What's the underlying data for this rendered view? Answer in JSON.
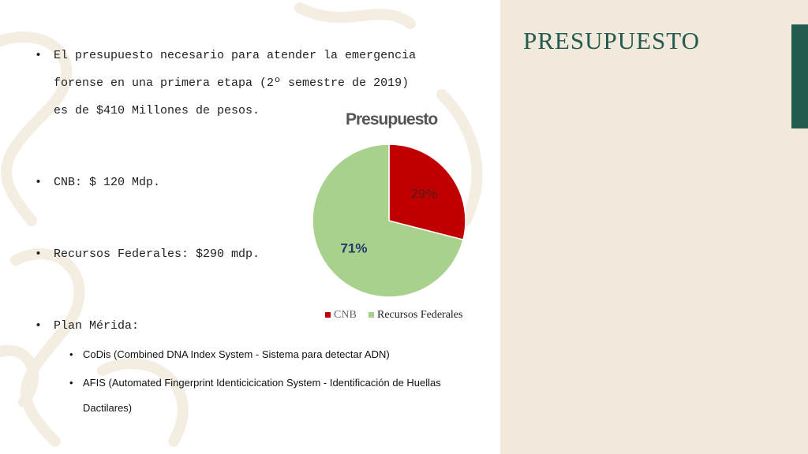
{
  "slide": {
    "title": "PRESUPUESTO",
    "accent_color": "#235b4e",
    "panel_color": "#f1e9dc"
  },
  "bullets": [
    {
      "line1": "El presupuesto necesario para atender la emergencia",
      "line2": "forense en una primera etapa (2º semestre de 2019)",
      "line3": "es de  $410 Millones de pesos."
    },
    {
      "text": "CNB: $ 120 Mdp."
    },
    {
      "text": "Recursos Federales: $290 mdp."
    },
    {
      "text": "Plan Mérida:"
    }
  ],
  "sub_bullets": [
    {
      "text": "CoDis (Combined DNA Index System - Sistema para detectar ADN)"
    },
    {
      "line1": "AFIS (Automated Fingerprint Identicicication System - Identificación de Huellas",
      "line2": "Dactilares)"
    }
  ],
  "chart_data": {
    "type": "pie",
    "title": "Presupuesto",
    "categories": [
      "CNB",
      "Recursos Federales"
    ],
    "values": [
      29,
      71
    ],
    "labels": [
      "29%",
      "71%"
    ],
    "colors": [
      "#c00000",
      "#a9d18e"
    ],
    "legend_position": "bottom"
  }
}
